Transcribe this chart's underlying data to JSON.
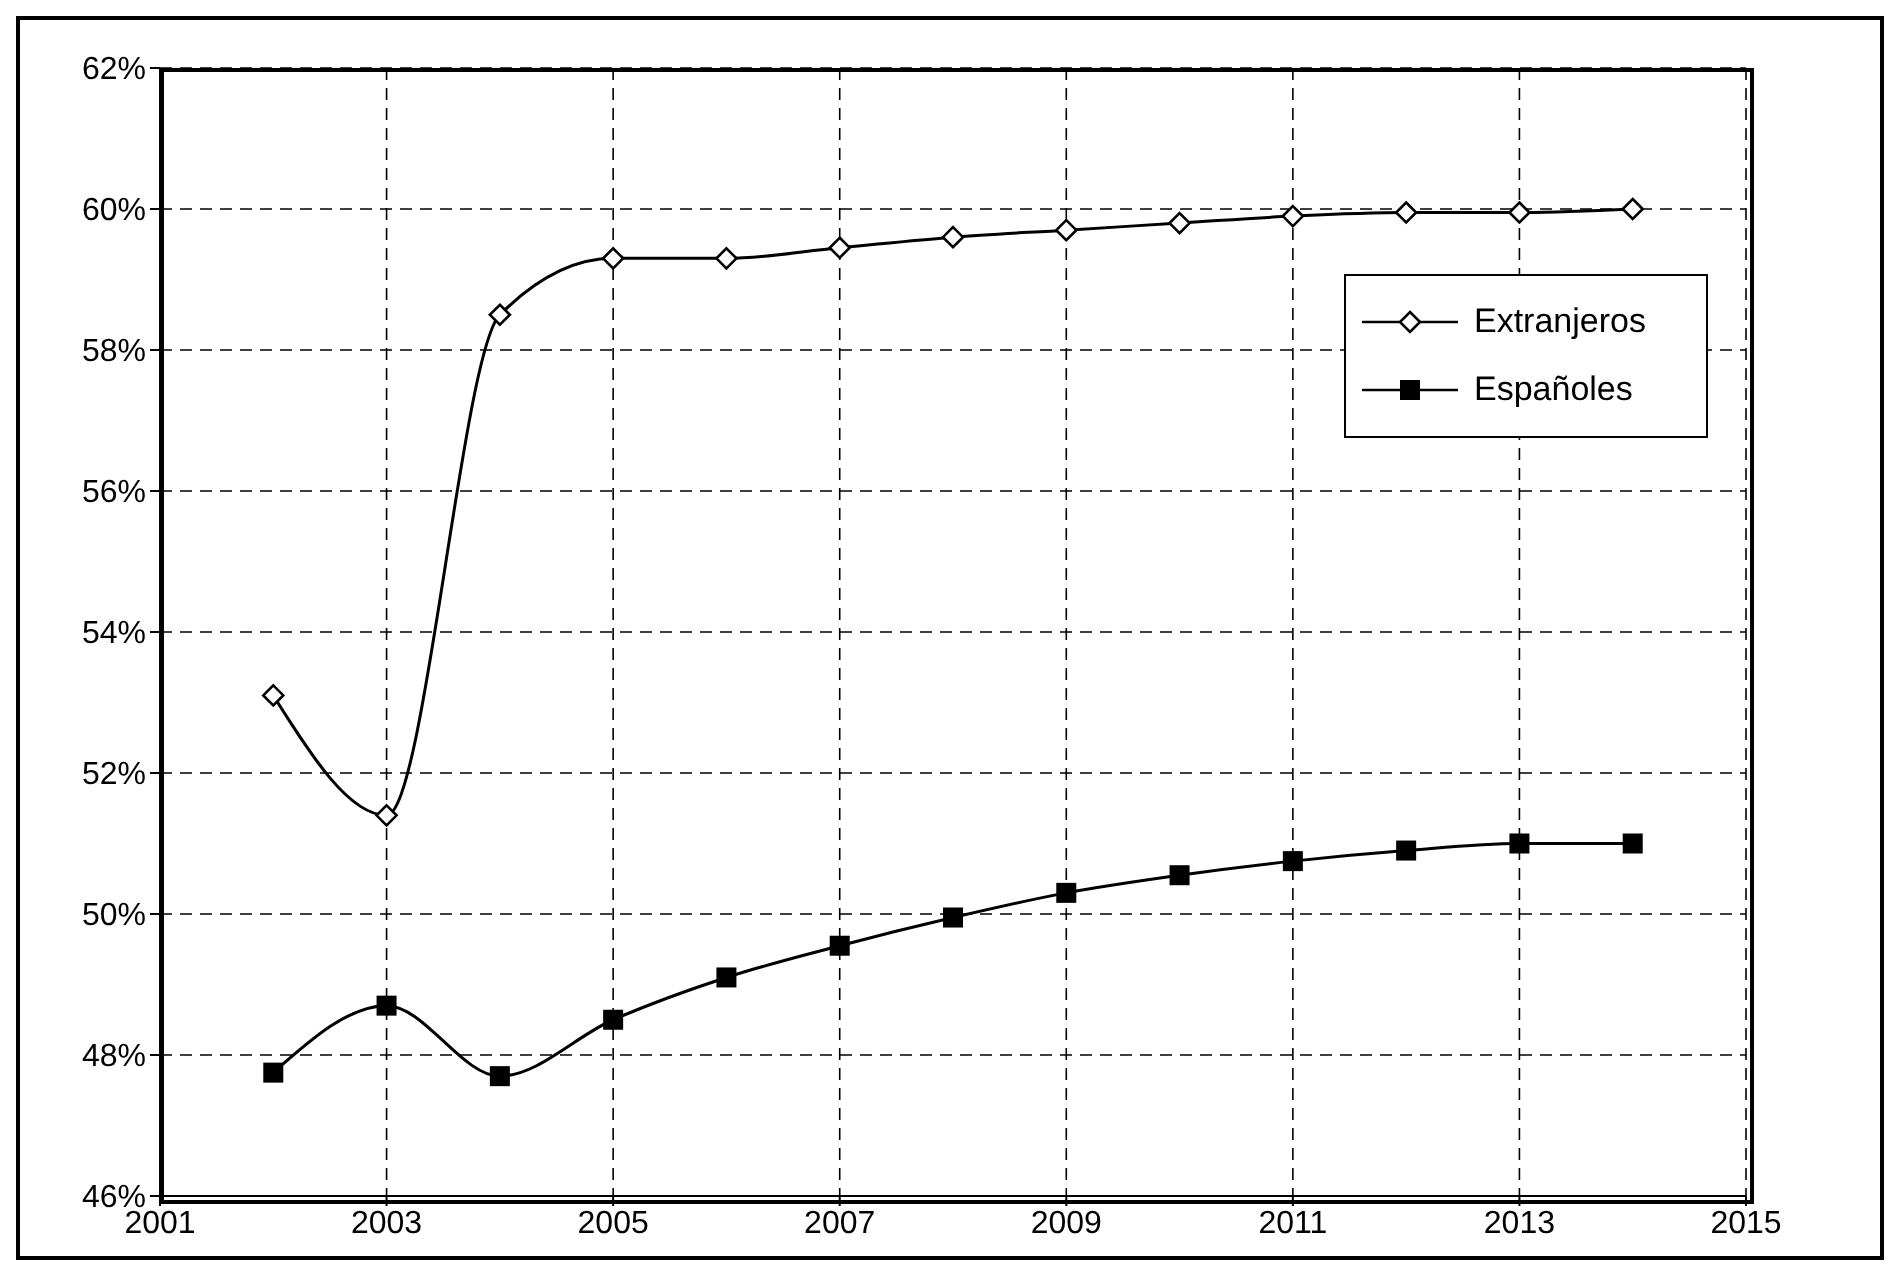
{
  "chart_data": {
    "type": "line",
    "x": [
      2002,
      2003,
      2004,
      2005,
      2006,
      2007,
      2008,
      2009,
      2010,
      2011,
      2012,
      2013,
      2014
    ],
    "series": [
      {
        "name": "Extranjeros",
        "color": "#000000",
        "marker": "diamond",
        "values": [
          53.1,
          51.4,
          58.5,
          59.3,
          59.3,
          59.45,
          59.6,
          59.7,
          59.8,
          59.9,
          59.95,
          59.95,
          60.0
        ]
      },
      {
        "name": "Españoles",
        "color": "#000000",
        "marker": "square",
        "values": [
          47.75,
          48.7,
          47.7,
          48.5,
          49.1,
          49.55,
          49.95,
          50.3,
          50.55,
          50.75,
          50.9,
          51.0,
          51.0
        ]
      }
    ],
    "xlim": [
      2001,
      2015
    ],
    "xticks": [
      2001,
      2003,
      2005,
      2007,
      2009,
      2011,
      2013,
      2015
    ],
    "ylim": [
      46,
      62
    ],
    "yticks": [
      {
        "value": 46,
        "label": "46%"
      },
      {
        "value": 48,
        "label": "48%"
      },
      {
        "value": 50,
        "label": "50%"
      },
      {
        "value": 52,
        "label": "52%"
      },
      {
        "value": 54,
        "label": "54%"
      },
      {
        "value": 56,
        "label": "56%"
      },
      {
        "value": 58,
        "label": "58%"
      },
      {
        "value": 60,
        "label": "60%"
      },
      {
        "value": 62,
        "label": "62%"
      }
    ],
    "grid": true,
    "legend": "top right",
    "line_style": "solid"
  }
}
